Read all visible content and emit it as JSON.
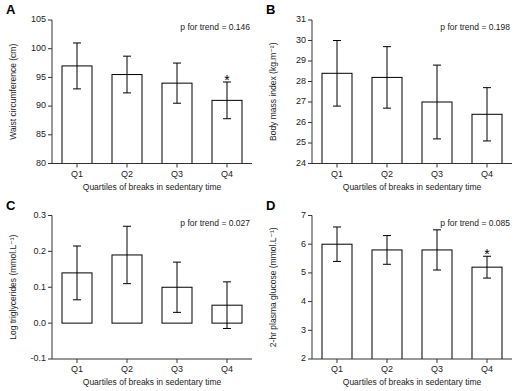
{
  "chart_data": [
    {
      "type": "bar",
      "title": "A",
      "ylabel": "Waist circumference (cm)",
      "xlabel": "Quartiles of breaks in sedentary time",
      "categories": [
        "Q1",
        "Q2",
        "Q3",
        "Q4"
      ],
      "values": [
        97.0,
        95.5,
        94.0,
        91.0
      ],
      "errors": [
        4.0,
        3.2,
        3.5,
        3.2
      ],
      "color": "#ffffff",
      "ylim": [
        80,
        105
      ],
      "yticks": [
        80,
        85,
        90,
        95,
        100,
        105
      ],
      "grid": false,
      "annotations": [
        {
          "text": "p for trend = 0.146"
        },
        {
          "text": "*",
          "category": "Q4"
        }
      ]
    },
    {
      "type": "bar",
      "title": "B",
      "ylabel": "Body mass index (kg.m⁻²)",
      "xlabel": "Quartiles of breaks in sedentary time",
      "categories": [
        "Q1",
        "Q2",
        "Q3",
        "Q4"
      ],
      "values": [
        28.4,
        28.2,
        27.0,
        26.4
      ],
      "errors": [
        1.6,
        1.5,
        1.8,
        1.3
      ],
      "color": "#ffffff",
      "ylim": [
        24,
        31
      ],
      "yticks": [
        24,
        25,
        26,
        27,
        28,
        29,
        30,
        31
      ],
      "grid": false,
      "annotations": [
        {
          "text": "p for trend = 0.198"
        }
      ]
    },
    {
      "type": "bar",
      "title": "C",
      "ylabel": "Log triglycerides (mmol.L⁻¹)",
      "xlabel": "Quartiles of breaks in sedentary time",
      "categories": [
        "Q1",
        "Q2",
        "Q3",
        "Q4"
      ],
      "values": [
        0.14,
        0.19,
        0.1,
        0.05
      ],
      "errors": [
        0.075,
        0.08,
        0.07,
        0.065
      ],
      "color": "#ffffff",
      "ylim": [
        -0.1,
        0.3
      ],
      "yticks": [
        -0.1,
        {
          "value": 0,
          "label": "0.0"
        },
        0.1,
        0.2,
        0.3
      ],
      "grid": false,
      "annotations": [
        {
          "text": "p for trend = 0.027"
        }
      ]
    },
    {
      "type": "bar",
      "title": "D",
      "ylabel": "2-hr plasma glucose (mmol.L⁻¹)",
      "xlabel": "Quartiles of breaks in sedentary time",
      "categories": [
        "Q1",
        "Q2",
        "Q3",
        "Q4"
      ],
      "values": [
        6.0,
        5.8,
        5.8,
        5.2
      ],
      "errors": [
        0.6,
        0.5,
        0.7,
        0.38
      ],
      "color": "#ffffff",
      "ylim": [
        2,
        7
      ],
      "yticks": [
        2,
        3,
        4,
        5,
        6,
        7
      ],
      "grid": false,
      "annotations": [
        {
          "text": "p for trend = 0.085"
        },
        {
          "text": "*",
          "category": "Q4"
        }
      ]
    }
  ]
}
